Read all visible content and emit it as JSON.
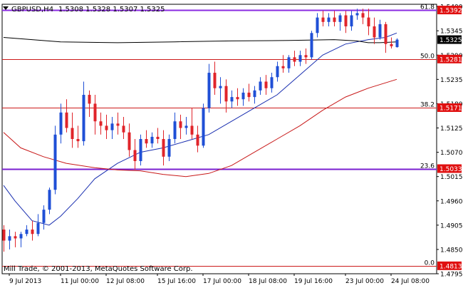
{
  "header": {
    "symbol_label": "GBPUSD,H4",
    "ohlc_values": "1.5308 1.5328 1.5307 1.5325",
    "marker_icon": "triangle-down-icon"
  },
  "footer": {
    "copyright": "Mill Trade, © 2001-2013, MetaQuotes Software Corp."
  },
  "colors": {
    "background": "#ffffff",
    "frame": "#000000",
    "bull_candle": "#1f4fd6",
    "bear_candle": "#e0242a",
    "fib_line": "#cc1a1a",
    "fib_top_line": "#8a2be2",
    "fib_bottom_line": "#7a1fd0",
    "ma_fast": "#1a2fb0",
    "ma_slow": "#c81818",
    "ma_black": "#000000"
  },
  "chart_data": {
    "type": "candlestick",
    "title": "GBPUSD,H4",
    "ylim": [
      1.4795,
      1.5405
    ],
    "y_ticks": [
      "1.5400",
      "1.5345",
      "1.5290",
      "1.5235",
      "1.5180",
      "1.5125",
      "1.5070",
      "1.5015",
      "1.4960",
      "1.4905",
      "1.4850",
      "1.4795"
    ],
    "x_tick_labels": [
      {
        "label": "9 Jul 2013",
        "bar": 1
      },
      {
        "label": "11 Jul 00:00",
        "bar": 10
      },
      {
        "label": "12 Jul 08:00",
        "bar": 18
      },
      {
        "label": "15 Jul 16:00",
        "bar": 27
      },
      {
        "label": "17 Jul 00:00",
        "bar": 35
      },
      {
        "label": "18 Jul 08:00",
        "bar": 43
      },
      {
        "label": "19 Jul 16:00",
        "bar": 51
      },
      {
        "label": "23 Jul 00:00",
        "bar": 60
      },
      {
        "label": "24 Jul 08:00",
        "bar": 68
      }
    ],
    "fib_levels": [
      {
        "label": "61.8",
        "price": 1.5392,
        "price_label": "1.5392"
      },
      {
        "label": "50.0",
        "price": 1.5281,
        "price_label": "1.5281"
      },
      {
        "label": "38.2",
        "price": 1.5171,
        "price_label": "1.5171"
      },
      {
        "label": "23.6",
        "price": 1.5033,
        "price_label": "1.5033"
      },
      {
        "label": "0.0",
        "price": 1.4813,
        "price_label": "1.4813"
      }
    ],
    "current_price": {
      "price": 1.5325,
      "label": "1.5325"
    },
    "candles": [
      [
        1.4895,
        1.4905,
        1.4845,
        1.487
      ],
      [
        1.487,
        1.4895,
        1.485,
        1.488
      ],
      [
        1.488,
        1.489,
        1.4855,
        1.4875
      ],
      [
        1.4875,
        1.489,
        1.4855,
        1.4885
      ],
      [
        1.4885,
        1.4905,
        1.488,
        1.4895
      ],
      [
        1.4895,
        1.4915,
        1.487,
        1.4885
      ],
      [
        1.4885,
        1.493,
        1.488,
        1.491
      ],
      [
        1.491,
        1.495,
        1.4895,
        1.494
      ],
      [
        1.494,
        1.499,
        1.493,
        1.4985
      ],
      [
        1.4985,
        1.513,
        1.4975,
        1.511
      ],
      [
        1.511,
        1.518,
        1.509,
        1.516
      ],
      [
        1.516,
        1.519,
        1.5115,
        1.5125
      ],
      [
        1.5125,
        1.516,
        1.508,
        1.51
      ],
      [
        1.51,
        1.513,
        1.508,
        1.5095
      ],
      [
        1.5095,
        1.523,
        1.5085,
        1.52
      ],
      [
        1.52,
        1.521,
        1.515,
        1.518
      ],
      [
        1.518,
        1.52,
        1.511,
        1.514
      ],
      [
        1.514,
        1.516,
        1.511,
        1.513
      ],
      [
        1.513,
        1.5155,
        1.51,
        1.512
      ],
      [
        1.512,
        1.515,
        1.51,
        1.5135
      ],
      [
        1.5135,
        1.516,
        1.511,
        1.513
      ],
      [
        1.513,
        1.515,
        1.51,
        1.5115
      ],
      [
        1.5115,
        1.5135,
        1.506,
        1.5075
      ],
      [
        1.5075,
        1.51,
        1.503,
        1.505
      ],
      [
        1.505,
        1.511,
        1.504,
        1.51
      ],
      [
        1.51,
        1.512,
        1.508,
        1.509
      ],
      [
        1.509,
        1.5115,
        1.508,
        1.5105
      ],
      [
        1.5105,
        1.5125,
        1.509,
        1.51
      ],
      [
        1.51,
        1.512,
        1.504,
        1.506
      ],
      [
        1.506,
        1.511,
        1.505,
        1.51
      ],
      [
        1.51,
        1.516,
        1.509,
        1.514
      ],
      [
        1.514,
        1.5155,
        1.51,
        1.5125
      ],
      [
        1.5125,
        1.515,
        1.511,
        1.513
      ],
      [
        1.513,
        1.517,
        1.51,
        1.511
      ],
      [
        1.511,
        1.513,
        1.507,
        1.5085
      ],
      [
        1.5085,
        1.518,
        1.508,
        1.517
      ],
      [
        1.517,
        1.527,
        1.516,
        1.525
      ],
      [
        1.525,
        1.5275,
        1.52,
        1.5215
      ],
      [
        1.5215,
        1.524,
        1.518,
        1.522
      ],
      [
        1.522,
        1.5235,
        1.516,
        1.5185
      ],
      [
        1.5185,
        1.521,
        1.517,
        1.5195
      ],
      [
        1.5195,
        1.5215,
        1.5175,
        1.519
      ],
      [
        1.519,
        1.5215,
        1.5175,
        1.5205
      ],
      [
        1.5205,
        1.5225,
        1.5185,
        1.5195
      ],
      [
        1.5195,
        1.522,
        1.518,
        1.521
      ],
      [
        1.521,
        1.524,
        1.52,
        1.523
      ],
      [
        1.523,
        1.5245,
        1.52,
        1.5215
      ],
      [
        1.5215,
        1.525,
        1.5205,
        1.524
      ],
      [
        1.524,
        1.5275,
        1.523,
        1.5265
      ],
      [
        1.5265,
        1.529,
        1.525,
        1.526
      ],
      [
        1.526,
        1.529,
        1.525,
        1.5285
      ],
      [
        1.5285,
        1.53,
        1.5265,
        1.5275
      ],
      [
        1.5275,
        1.53,
        1.5265,
        1.529
      ],
      [
        1.529,
        1.5305,
        1.527,
        1.5285
      ],
      [
        1.5285,
        1.5345,
        1.528,
        1.534
      ],
      [
        1.534,
        1.5385,
        1.533,
        1.5375
      ],
      [
        1.5375,
        1.539,
        1.5355,
        1.5365
      ],
      [
        1.5365,
        1.5385,
        1.5355,
        1.5375
      ],
      [
        1.5375,
        1.539,
        1.5355,
        1.5365
      ],
      [
        1.5365,
        1.5385,
        1.5345,
        1.538
      ],
      [
        1.538,
        1.539,
        1.534,
        1.5355
      ],
      [
        1.5355,
        1.539,
        1.5345,
        1.538
      ],
      [
        1.538,
        1.5395,
        1.537,
        1.5385
      ],
      [
        1.5385,
        1.5395,
        1.536,
        1.5375
      ],
      [
        1.5375,
        1.5395,
        1.5335,
        1.5355
      ],
      [
        1.5355,
        1.5375,
        1.5315,
        1.533
      ],
      [
        1.533,
        1.537,
        1.5325,
        1.536
      ],
      [
        1.536,
        1.5365,
        1.5295,
        1.5315
      ],
      [
        1.5315,
        1.533,
        1.5305,
        1.531
      ],
      [
        1.5308,
        1.5328,
        1.5307,
        1.5325
      ]
    ],
    "series": [
      {
        "style": "line",
        "color": "#1a2fb0",
        "points": [
          [
            0,
            1.4995
          ],
          [
            2,
            1.496
          ],
          [
            5,
            1.4915
          ],
          [
            8,
            1.4905
          ],
          [
            10,
            1.4925
          ],
          [
            13,
            1.4965
          ],
          [
            16,
            1.501
          ],
          [
            20,
            1.5045
          ],
          [
            24,
            1.507
          ],
          [
            28,
            1.508
          ],
          [
            32,
            1.5095
          ],
          [
            36,
            1.511
          ],
          [
            40,
            1.514
          ],
          [
            44,
            1.517
          ],
          [
            48,
            1.52
          ],
          [
            52,
            1.5245
          ],
          [
            56,
            1.529
          ],
          [
            60,
            1.5315
          ],
          [
            64,
            1.5325
          ],
          [
            67,
            1.533
          ],
          [
            69,
            1.534
          ]
        ]
      },
      {
        "style": "line",
        "color": "#c81818",
        "points": [
          [
            0,
            1.5115
          ],
          [
            3,
            1.508
          ],
          [
            7,
            1.506
          ],
          [
            11,
            1.5045
          ],
          [
            16,
            1.5035
          ],
          [
            20,
            1.503
          ],
          [
            24,
            1.5028
          ],
          [
            28,
            1.502
          ],
          [
            32,
            1.5015
          ],
          [
            36,
            1.5022
          ],
          [
            40,
            1.504
          ],
          [
            44,
            1.507
          ],
          [
            48,
            1.51
          ],
          [
            52,
            1.513
          ],
          [
            56,
            1.5165
          ],
          [
            60,
            1.5195
          ],
          [
            64,
            1.5215
          ],
          [
            69,
            1.5235
          ]
        ]
      },
      {
        "style": "line",
        "color": "#000000",
        "points": [
          [
            0,
            1.533
          ],
          [
            10,
            1.532
          ],
          [
            20,
            1.5318
          ],
          [
            30,
            1.532
          ],
          [
            40,
            1.5322
          ],
          [
            50,
            1.5323
          ],
          [
            58,
            1.5325
          ],
          [
            62,
            1.5322
          ],
          [
            64,
            1.5318
          ],
          [
            66,
            1.5318
          ],
          [
            69,
            1.532
          ]
        ]
      }
    ]
  }
}
